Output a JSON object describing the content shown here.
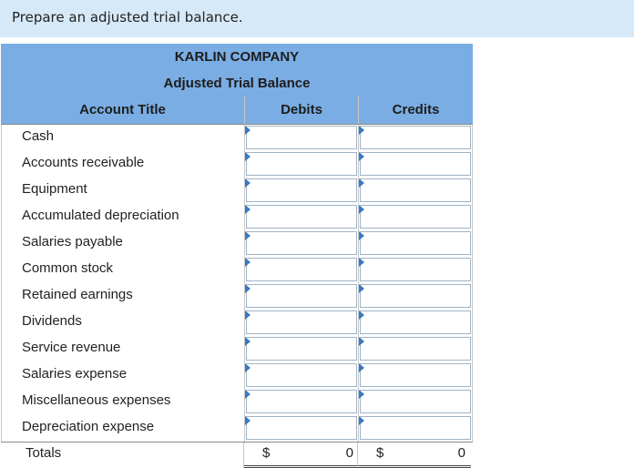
{
  "instruction": "Prepare an adjusted trial balance.",
  "header": {
    "company": "KARLIN COMPANY",
    "statement": "Adjusted Trial Balance",
    "col_account": "Account Title",
    "col_debits": "Debits",
    "col_credits": "Credits"
  },
  "accounts": [
    "Cash",
    "Accounts receivable",
    "Equipment",
    "Accumulated depreciation",
    "Salaries payable",
    "Common stock",
    "Retained earnings",
    "Dividends",
    "Service revenue",
    "Salaries expense",
    "Miscellaneous expenses",
    "Depreciation expense"
  ],
  "totals": {
    "label": "Totals",
    "currency": "$",
    "debits": "0",
    "credits": "0"
  },
  "colors": {
    "instruction_bg": "#d6e9f8",
    "header_bg": "#7aade3",
    "marker": "#3a78c4"
  }
}
